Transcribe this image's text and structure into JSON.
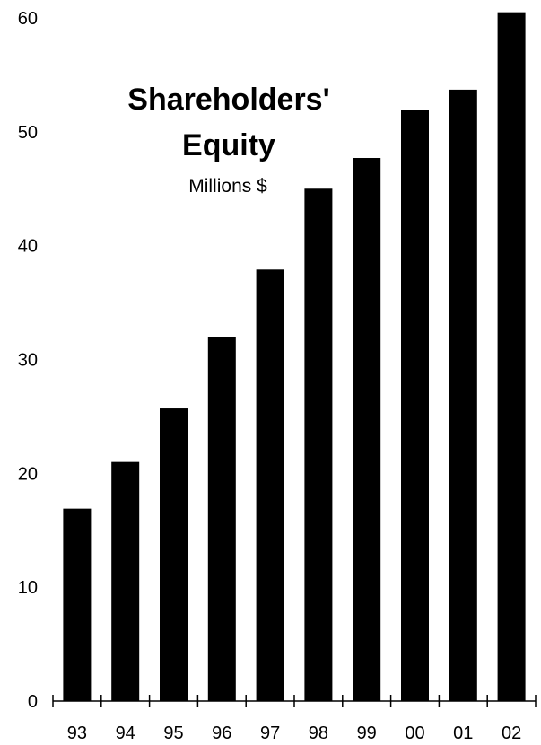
{
  "chart_data": {
    "type": "bar",
    "title_lines": [
      "Shareholders'",
      "Equity"
    ],
    "subtitle": "Millions $",
    "xlabel": "",
    "ylabel": "",
    "categories": [
      "93",
      "94",
      "95",
      "96",
      "97",
      "98",
      "99",
      "00",
      "01",
      "02"
    ],
    "values": [
      16.9,
      21.0,
      25.7,
      32.0,
      37.9,
      45.0,
      47.7,
      51.9,
      53.7,
      60.5
    ],
    "ylim": [
      0,
      60
    ],
    "yticks": [
      0,
      10,
      20,
      30,
      40,
      50,
      60
    ],
    "grid": false,
    "bar_color": "#000000"
  }
}
